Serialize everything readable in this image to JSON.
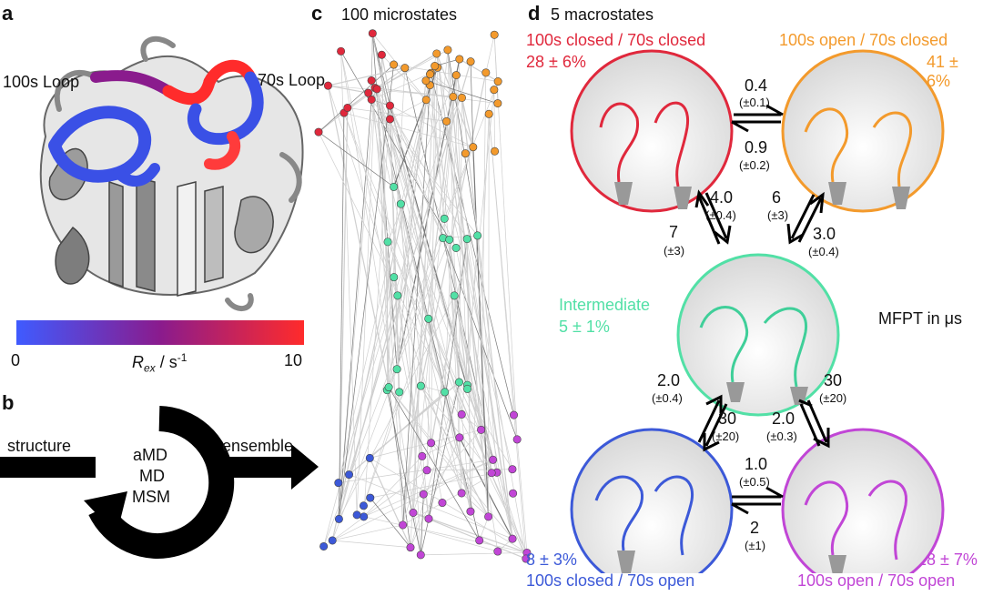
{
  "panels": {
    "a": {
      "letter": "a",
      "loop_100s": "100s Loop",
      "loop_70s": "70s Loop",
      "colorbar": {
        "min": "0",
        "max": "10",
        "label_R": "R",
        "label_sub": "ex",
        "label_units": " / s",
        "label_sup": "-1",
        "gradient_start": "#3f5bff",
        "gradient_mid": "#8a1b8d",
        "gradient_end": "#ff2b2b"
      }
    },
    "b": {
      "letter": "b",
      "left_label": "structure",
      "right_label": "ensemble",
      "cycle_items": [
        "aMD",
        "MD",
        "MSM"
      ]
    },
    "c": {
      "letter": "c",
      "title": "100 microstates"
    },
    "d": {
      "letter": "d",
      "title": "5 macrostates",
      "mfpt_label": "MFPT in μs",
      "states": {
        "closed_closed": {
          "name": "100s closed / 70s closed",
          "pop": "28 ± 6%",
          "color": "#e0283c"
        },
        "open_closed": {
          "name": "100s open / 70s closed",
          "pop": "41 ± 6%",
          "color": "#f39a2c"
        },
        "intermediate": {
          "name": "Intermediate",
          "pop": "5 ± 1%",
          "color": "#52e0a6"
        },
        "closed_open": {
          "name": "100s closed / 70s open",
          "pop": "8 ± 3%",
          "color": "#3c59d8"
        },
        "open_open": {
          "name": "100s open / 70s open",
          "pop": "18 ± 7%",
          "color": "#c146d6"
        }
      },
      "rates": {
        "cc_to_oc": {
          "value": "0.4",
          "err": "(±0.1)"
        },
        "oc_to_cc": {
          "value": "0.9",
          "err": "(±0.2)"
        },
        "cc_to_int": {
          "value": "4.0",
          "err": "(±0.4)"
        },
        "int_to_cc": {
          "value": "7",
          "err": "(±3)"
        },
        "oc_to_int": {
          "value": "6",
          "err": "(±3)"
        },
        "int_to_oc": {
          "value": "3.0",
          "err": "(±0.4)"
        },
        "co_to_int": {
          "value": "2.0",
          "err": "(±0.4)"
        },
        "int_to_co": {
          "value": "30",
          "err": "(±20)"
        },
        "oo_to_int": {
          "value": "30",
          "err": "(±20)"
        },
        "int_to_oo": {
          "value": "2.0",
          "err": "(±0.3)"
        },
        "co_to_oo": {
          "value": "1.0",
          "err": "(±0.5)"
        },
        "oo_to_co": {
          "value": "2",
          "err": "(±1)"
        }
      }
    }
  }
}
